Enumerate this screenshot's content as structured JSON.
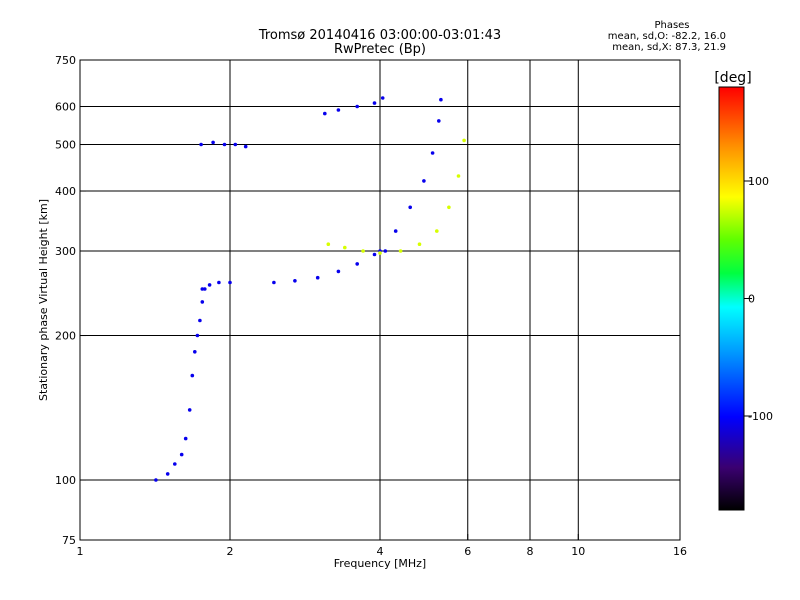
{
  "header": {
    "title_line1": "Tromsø 20140416 03:00:00-03:01:43",
    "title_line2": "RwPretec (Bp)"
  },
  "phase_panel": {
    "heading": "Phases",
    "line_o": "mean, sd,O: -82.2, 16.0",
    "line_x": "mean, sd,X:  87.3, 21.9"
  },
  "chart_data": {
    "type": "scatter",
    "xlabel": "Frequency [MHz]",
    "ylabel": "Stationary phase Virtual Height [km]",
    "xscale": "log",
    "yscale": "log",
    "xlim": [
      1,
      16
    ],
    "ylim": [
      75,
      750
    ],
    "xticks": [
      1,
      2,
      4,
      6,
      8,
      10,
      16
    ],
    "yticks": [
      75,
      100,
      200,
      300,
      400,
      500,
      600,
      750
    ],
    "grid_x": [
      2,
      4,
      6,
      8,
      10
    ],
    "grid_y": [
      100,
      200,
      300,
      400,
      500,
      600
    ],
    "colorbar": {
      "label": "[deg]",
      "range": [
        -180,
        180
      ],
      "ticks": [
        -100,
        0,
        100
      ],
      "colormap": [
        "#000000",
        "#3a0070",
        "#0000ff",
        "#00a0ff",
        "#00ffff",
        "#00ff40",
        "#60ff00",
        "#ffff00",
        "#ff9000",
        "#ff0000"
      ]
    },
    "series": [
      {
        "note_phase": -105,
        "segments": [
          {
            "kind": "trace",
            "points": [
              [
                1.42,
                100
              ],
              [
                1.5,
                103
              ],
              [
                1.55,
                108
              ],
              [
                1.6,
                113
              ],
              [
                1.63,
                122
              ],
              [
                1.66,
                140
              ],
              [
                1.68,
                165
              ],
              [
                1.7,
                185
              ],
              [
                1.72,
                200
              ],
              [
                1.74,
                215
              ],
              [
                1.76,
                235
              ],
              [
                1.78,
                250
              ]
            ]
          },
          {
            "kind": "trace",
            "points": [
              [
                1.76,
                250
              ],
              [
                1.82,
                255
              ],
              [
                1.9,
                258
              ],
              [
                2.0,
                258
              ]
            ]
          },
          {
            "kind": "trace",
            "points": [
              [
                2.45,
                258
              ],
              [
                2.7,
                260
              ],
              [
                3.0,
                264
              ],
              [
                3.3,
                272
              ],
              [
                3.6,
                282
              ],
              [
                3.9,
                295
              ],
              [
                4.1,
                300
              ]
            ]
          },
          {
            "kind": "trace",
            "points": [
              [
                4.0,
                300
              ],
              [
                4.3,
                330
              ],
              [
                4.6,
                370
              ],
              [
                4.9,
                420
              ],
              [
                5.1,
                480
              ],
              [
                5.25,
                560
              ],
              [
                5.3,
                620
              ]
            ]
          },
          {
            "kind": "trace",
            "points": [
              [
                3.1,
                580
              ],
              [
                3.3,
                590
              ],
              [
                3.6,
                600
              ],
              [
                3.9,
                610
              ],
              [
                4.05,
                625
              ]
            ]
          },
          {
            "kind": "trace",
            "points": [
              [
                1.75,
                500
              ],
              [
                1.85,
                505
              ],
              [
                1.95,
                500
              ],
              [
                2.05,
                500
              ],
              [
                2.15,
                495
              ]
            ]
          }
        ]
      },
      {
        "note_phase": 90,
        "segments": [
          {
            "kind": "trace",
            "points": [
              [
                3.15,
                310
              ],
              [
                3.4,
                305
              ],
              [
                3.7,
                300
              ],
              [
                4.0,
                297
              ],
              [
                4.4,
                300
              ],
              [
                4.8,
                310
              ],
              [
                5.2,
                330
              ],
              [
                5.5,
                370
              ],
              [
                5.75,
                430
              ],
              [
                5.9,
                510
              ]
            ]
          }
        ]
      }
    ]
  }
}
